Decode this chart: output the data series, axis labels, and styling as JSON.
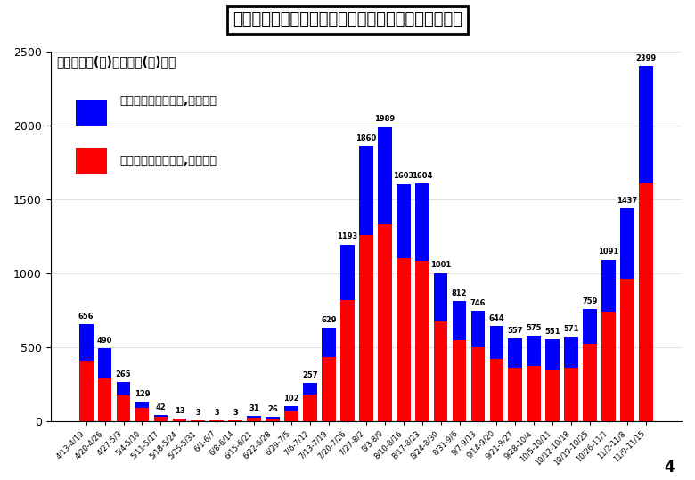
{
  "title": "関西２府４県における新規感染者数の推移（週単位）",
  "subtitle_line1": "１１月９日(月)～１５日(日)の週",
  "subtitle_line2": "：２府４県合計　２,３９９人",
  "subtitle_line3": "：大阪府　　　　１,６０５人",
  "categories": [
    "4/13-4/19",
    "4/20-4/26",
    "4/27-5/3",
    "5/4-5/10",
    "5/11-5/17",
    "5/18-5/24",
    "5/25-5/31",
    "6/1-6/7",
    "6/8-6/14",
    "6/15-6/21",
    "6/22-6/28",
    "6/29-7/5",
    "7/6-7/12",
    "7/13-7/19",
    "7/20-7/26",
    "7/27-8/2",
    "8/3-8/9",
    "8/10-8/16",
    "8/17-8/23",
    "8/24-8/30",
    "8/31-9/6",
    "9/7-9/13",
    "9/14-9/20",
    "9/21-9/27",
    "9/28-10/4",
    "10/5-10/11",
    "10/12-10/18",
    "10/19-10/25",
    "10/26-11/1",
    "11/2-11/8",
    "11/9-11/15"
  ],
  "total_values": [
    656,
    490,
    265,
    129,
    42,
    13,
    3,
    3,
    3,
    31,
    26,
    102,
    257,
    629,
    1193,
    1860,
    1989,
    1603,
    1604,
    1001,
    812,
    746,
    644,
    557,
    575,
    551,
    571,
    759,
    1091,
    1437,
    2399
  ],
  "osaka_values": [
    410,
    290,
    170,
    90,
    30,
    8,
    2,
    2,
    2,
    22,
    18,
    70,
    180,
    430,
    820,
    1260,
    1330,
    1100,
    1080,
    670,
    545,
    500,
    420,
    360,
    370,
    340,
    360,
    520,
    740,
    960,
    1605
  ],
  "bar_color_total": "#0000FF",
  "bar_color_osaka": "#FF0000",
  "background_color": "#ffffff",
  "text_color": "#000000",
  "title_box_edge": "#000000",
  "ylim": [
    0,
    2500
  ],
  "yticks": [
    0,
    500,
    1000,
    1500,
    2000,
    2500
  ],
  "page_number": "4"
}
